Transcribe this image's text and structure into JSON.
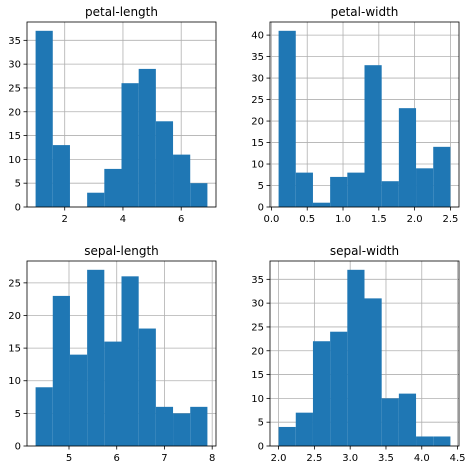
{
  "chart_data": [
    {
      "type": "bar",
      "title": "petal-length",
      "xlim": [
        0.705,
        7.195
      ],
      "ylim": [
        0,
        38.85
      ],
      "xticks": [
        2,
        4,
        6
      ],
      "yticks": [
        0,
        5,
        10,
        15,
        20,
        25,
        30,
        35
      ],
      "grid": true,
      "bin_edges": [
        1.0,
        1.59,
        2.18,
        2.77,
        3.36,
        3.95,
        4.54,
        5.13,
        5.72,
        6.31,
        6.9
      ],
      "values": [
        37,
        13,
        0,
        3,
        8,
        26,
        29,
        18,
        11,
        5
      ],
      "color": "#1f77b4"
    },
    {
      "type": "bar",
      "title": "petal-width",
      "xlim": [
        -0.02,
        2.62
      ],
      "ylim": [
        0,
        43.05
      ],
      "xticks": [
        0.0,
        0.5,
        1.0,
        1.5,
        2.0,
        2.5
      ],
      "yticks": [
        0,
        5,
        10,
        15,
        20,
        25,
        30,
        35,
        40
      ],
      "grid": true,
      "bin_edges": [
        0.1,
        0.34,
        0.58,
        0.82,
        1.06,
        1.3,
        1.54,
        1.78,
        2.02,
        2.26,
        2.5
      ],
      "values": [
        41,
        8,
        1,
        7,
        8,
        33,
        6,
        23,
        9,
        14
      ],
      "color": "#1f77b4"
    },
    {
      "type": "bar",
      "title": "sepal-length",
      "xlim": [
        4.12,
        8.08
      ],
      "ylim": [
        0,
        28.35
      ],
      "xticks": [
        5,
        6,
        7,
        8
      ],
      "yticks": [
        0,
        5,
        10,
        15,
        20,
        25
      ],
      "grid": true,
      "bin_edges": [
        4.3,
        4.66,
        5.02,
        5.38,
        5.74,
        6.1,
        6.46,
        6.82,
        7.18,
        7.54,
        7.9
      ],
      "values": [
        9,
        23,
        14,
        27,
        16,
        26,
        18,
        6,
        5,
        6
      ],
      "color": "#1f77b4"
    },
    {
      "type": "bar",
      "title": "sepal-width",
      "xlim": [
        1.88,
        4.52
      ],
      "ylim": [
        0,
        38.85
      ],
      "xticks": [
        2.0,
        2.5,
        3.0,
        3.5,
        4.0,
        4.5
      ],
      "yticks": [
        0,
        5,
        10,
        15,
        20,
        25,
        30,
        35
      ],
      "grid": true,
      "bin_edges": [
        2.0,
        2.24,
        2.48,
        2.72,
        2.96,
        3.2,
        3.44,
        3.68,
        3.92,
        4.16,
        4.4
      ],
      "values": [
        4,
        7,
        22,
        24,
        37,
        31,
        10,
        11,
        2,
        2
      ],
      "color": "#1f77b4"
    }
  ]
}
